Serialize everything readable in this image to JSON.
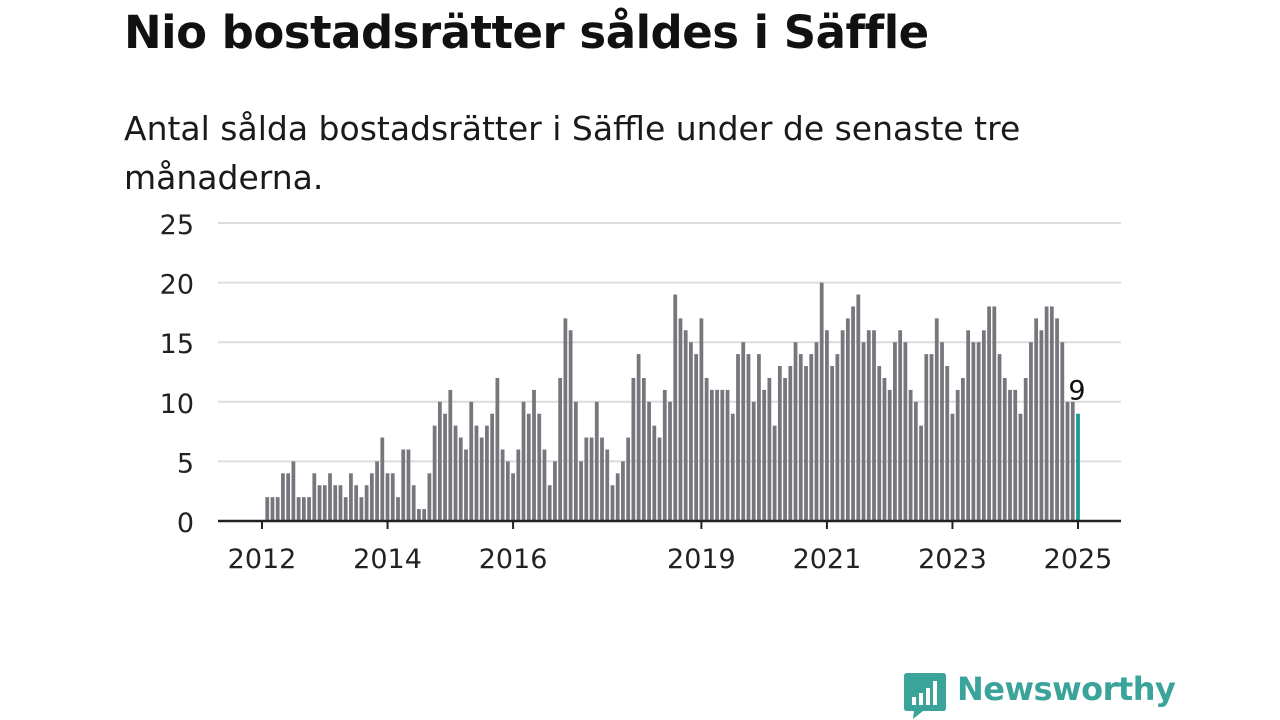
{
  "title": "Nio bostadsrätter såldes i Säffle",
  "subtitle": "Antal sålda bostadsrätter i Säffle under de senaste tre månaderna.",
  "brand": {
    "name": "Newsworthy",
    "color": "#3aa39a"
  },
  "colors": {
    "bar": "#76767d",
    "highlight": "#159b91",
    "grid": "#dcdcdc",
    "axis": "#222222"
  },
  "chart_data": {
    "type": "bar",
    "title": "Nio bostadsrätter såldes i Säffle",
    "ylim": [
      0,
      25
    ],
    "yticks": [
      "0",
      "5",
      "10",
      "15",
      "20",
      "25"
    ],
    "xticks": [
      "2012",
      "2014",
      "2016",
      "2019",
      "2021",
      "2023",
      "2025"
    ],
    "x_start": "2012-01",
    "x_end": "2024-12",
    "grid": "horizontal",
    "values": [
      2,
      2,
      2,
      4,
      4,
      5,
      2,
      2,
      2,
      4,
      3,
      3,
      4,
      3,
      3,
      2,
      4,
      3,
      2,
      3,
      4,
      5,
      7,
      4,
      4,
      2,
      6,
      6,
      3,
      1,
      1,
      4,
      8,
      10,
      9,
      11,
      8,
      7,
      6,
      10,
      8,
      7,
      8,
      9,
      12,
      6,
      5,
      4,
      6,
      10,
      9,
      11,
      9,
      6,
      3,
      5,
      12,
      17,
      16,
      10,
      5,
      7,
      7,
      10,
      7,
      6,
      3,
      4,
      5,
      7,
      12,
      14,
      12,
      10,
      8,
      7,
      11,
      10,
      19,
      17,
      16,
      15,
      14,
      17,
      12,
      11,
      11,
      11,
      11,
      9,
      14,
      15,
      14,
      10,
      14,
      11,
      12,
      8,
      13,
      12,
      13,
      15,
      14,
      13,
      14,
      15,
      20,
      16,
      13,
      14,
      16,
      17,
      18,
      19,
      15,
      16,
      16,
      13,
      12,
      11,
      15,
      16,
      15,
      11,
      10,
      8,
      14,
      14,
      17,
      15,
      13,
      9,
      11,
      12,
      16,
      15,
      15,
      16,
      18,
      18,
      14,
      12,
      11,
      11,
      9,
      12,
      15,
      17,
      16,
      18,
      18,
      17,
      15,
      10,
      10,
      9
    ],
    "highlight_index": 155,
    "highlight_label": "9"
  }
}
